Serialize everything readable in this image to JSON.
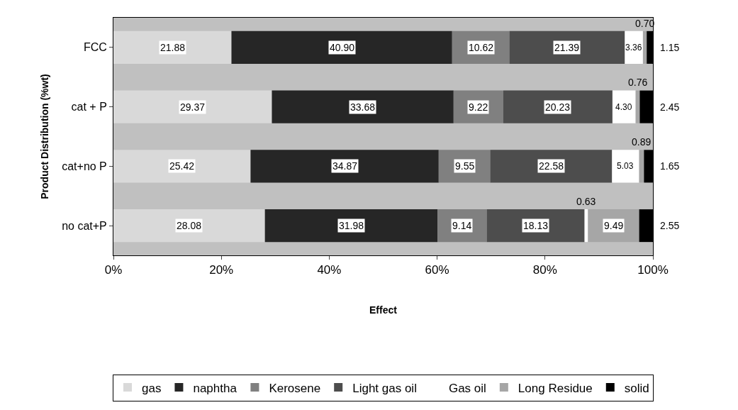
{
  "chart_data": {
    "type": "bar",
    "orientation": "horizontal",
    "stacked": true,
    "xlabel": "Effect",
    "ylabel": "Product Distribution (%wt)",
    "categories": [
      "FCC",
      "cat + P",
      "cat+no P",
      "no cat+P"
    ],
    "series": [
      {
        "name": "gas",
        "color": "#d9d9d9",
        "values": [
          21.88,
          29.37,
          25.42,
          28.08
        ],
        "value_labels": [
          "21.88",
          "29.37",
          "25.42",
          "28.08"
        ]
      },
      {
        "name": "naphtha",
        "color": "#262626",
        "values": [
          40.9,
          33.68,
          34.87,
          31.98
        ],
        "value_labels": [
          "40.90",
          "33.68",
          "34.87",
          "31.98"
        ]
      },
      {
        "name": "Kerosene",
        "color": "#808080",
        "values": [
          10.62,
          9.22,
          9.55,
          9.14
        ],
        "value_labels": [
          "10.62",
          "9.22",
          "9.55",
          "9.14"
        ]
      },
      {
        "name": "Light gas oil",
        "color": "#4d4d4d",
        "values": [
          21.39,
          20.23,
          22.58,
          18.13
        ],
        "value_labels": [
          "21.39",
          "20.23",
          "22.58",
          "18.13"
        ]
      },
      {
        "name": "Gas oil",
        "color": "#ffffff",
        "values": [
          3.36,
          4.3,
          5.03,
          0.63
        ],
        "value_labels": [
          "3.36",
          "4.30",
          "5.03",
          "0.63"
        ]
      },
      {
        "name": "Long Residue",
        "color": "#a6a6a6",
        "values": [
          0.7,
          0.76,
          0.89,
          9.49
        ],
        "value_labels": [
          "0.70",
          "0.76",
          "0.89",
          "9.49"
        ]
      },
      {
        "name": "solid",
        "color": "#000000",
        "values": [
          1.15,
          2.45,
          1.65,
          2.55
        ],
        "value_labels": [
          "1.15",
          "2.45",
          "1.65",
          "2.55"
        ]
      }
    ],
    "xlim": [
      0,
      100
    ],
    "xticks": [
      {
        "value": 0,
        "label": "0%"
      },
      {
        "value": 20,
        "label": "20%"
      },
      {
        "value": 40,
        "label": "40%"
      },
      {
        "value": 60,
        "label": "60%"
      },
      {
        "value": 80,
        "label": "80%"
      },
      {
        "value": 100,
        "label": "100%"
      }
    ],
    "legend": "bottom",
    "grid": false
  }
}
